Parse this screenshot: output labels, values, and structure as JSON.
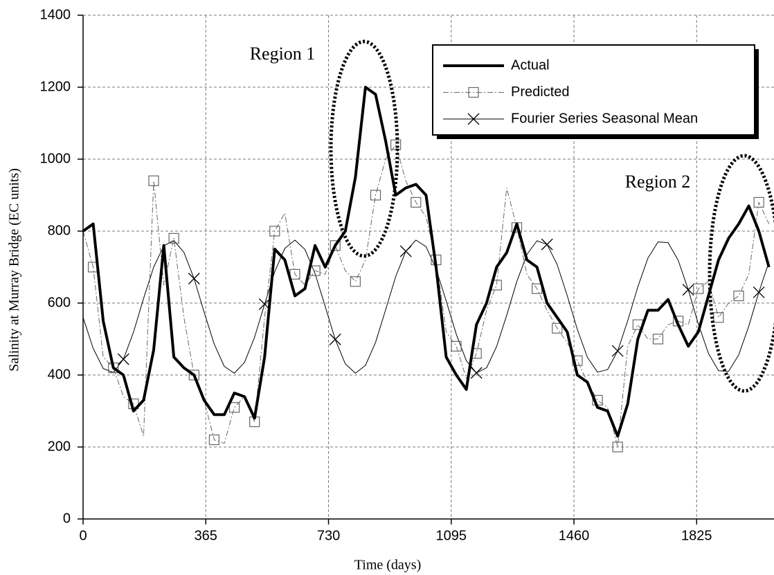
{
  "chart_data": {
    "type": "line",
    "x_label": "Time (days)",
    "y_label": "Salinity at Murray Bridge (EC units)",
    "xlim": [
      0,
      2055
    ],
    "ylim": [
      0,
      1400
    ],
    "xticks": [
      0,
      365,
      730,
      1095,
      1460,
      1825
    ],
    "yticks": [
      0,
      200,
      400,
      600,
      800,
      1000,
      1200,
      1400
    ],
    "grid": true,
    "legend": "top-right",
    "annotations": [
      "Region 1",
      "Region 2"
    ],
    "x": [
      0,
      30,
      60,
      90,
      120,
      150,
      180,
      210,
      240,
      270,
      300,
      330,
      360,
      390,
      420,
      450,
      480,
      510,
      540,
      570,
      600,
      630,
      660,
      690,
      720,
      750,
      780,
      810,
      840,
      870,
      900,
      930,
      960,
      990,
      1020,
      1050,
      1080,
      1110,
      1140,
      1170,
      1200,
      1230,
      1260,
      1290,
      1320,
      1350,
      1380,
      1410,
      1440,
      1470,
      1500,
      1530,
      1560,
      1590,
      1620,
      1650,
      1680,
      1710,
      1740,
      1770,
      1800,
      1830,
      1860,
      1890,
      1920,
      1950,
      1980,
      2010,
      2040
    ],
    "series": [
      {
        "name": "Actual",
        "color": "#000000",
        "line_style": "solid",
        "marker": null,
        "values": [
          800,
          820,
          550,
          420,
          400,
          300,
          330,
          470,
          760,
          450,
          420,
          400,
          330,
          290,
          290,
          350,
          340,
          280,
          450,
          750,
          720,
          620,
          640,
          760,
          700,
          760,
          800,
          950,
          1200,
          1180,
          1050,
          900,
          920,
          930,
          900,
          700,
          450,
          400,
          360,
          540,
          600,
          700,
          740,
          820,
          720,
          700,
          600,
          560,
          520,
          400,
          380,
          310,
          300,
          230,
          320,
          500,
          580,
          580,
          610,
          540,
          480,
          520,
          620,
          720,
          780,
          820,
          870,
          800,
          700
        ]
      },
      {
        "name": "Predicted",
        "color": "#666666",
        "line_style": "dashed",
        "marker": "square",
        "values": [
          800,
          700,
          450,
          420,
          340,
          320,
          230,
          940,
          650,
          780,
          560,
          400,
          330,
          220,
          210,
          310,
          340,
          270,
          560,
          800,
          850,
          680,
          650,
          690,
          680,
          760,
          690,
          660,
          720,
          900,
          1000,
          1040,
          940,
          880,
          840,
          720,
          520,
          480,
          390,
          460,
          580,
          650,
          920,
          810,
          680,
          640,
          580,
          530,
          490,
          440,
          380,
          330,
          310,
          200,
          480,
          540,
          500,
          500,
          540,
          550,
          540,
          640,
          660,
          560,
          600,
          620,
          680,
          880,
          820
        ]
      },
      {
        "name": "Fourier Series Seasonal Mean",
        "color": "#000000",
        "line_style": "thin",
        "marker": "x",
        "values": [
          560,
          474,
          418,
          407,
          444,
          519,
          613,
          700,
          759,
          774,
          741,
          668,
          575,
          486,
          424,
          405,
          435,
          505,
          597,
          687,
          752,
          775,
          749,
          682,
          591,
          499,
          431,
          405,
          427,
          491,
          582,
          674,
          744,
          775,
          757,
          695,
          606,
          513,
          440,
          406,
          420,
          479,
          566,
          660,
          735,
          773,
          763,
          707,
          621,
          527,
          449,
          408,
          415,
          467,
          551,
          645,
          725,
          770,
          768,
          719,
          637,
          542,
          460,
          412,
          410,
          456,
          536,
          630,
          714
        ]
      }
    ]
  }
}
